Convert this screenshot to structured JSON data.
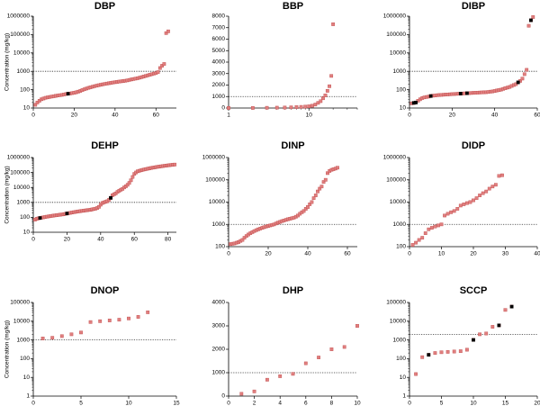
{
  "chart_data": [
    {
      "type": "scatter",
      "title": "DBP",
      "ylabel": "Concentration (mg/kg)",
      "xscale": "linear",
      "yscale": "log",
      "xlim": [
        0,
        70
      ],
      "ylim": [
        10,
        1000000
      ],
      "xticks": [
        "0",
        "20",
        "40",
        "60"
      ],
      "yticks": [
        "10",
        "100",
        "1000",
        "10000",
        "100000",
        "1000000"
      ],
      "threshold": 1000,
      "marker_color": "#e07f7f",
      "highlight_color": "#000000",
      "x": [
        1,
        2,
        3,
        4,
        5,
        6,
        7,
        8,
        9,
        10,
        11,
        12,
        13,
        14,
        15,
        16,
        17,
        18,
        19,
        20,
        21,
        22,
        23,
        24,
        25,
        26,
        27,
        28,
        29,
        30,
        31,
        32,
        33,
        34,
        35,
        36,
        37,
        38,
        39,
        40,
        41,
        42,
        43,
        44,
        45,
        46,
        47,
        48,
        49,
        50,
        51,
        52,
        53,
        54,
        55,
        56,
        57,
        58,
        59,
        60,
        61,
        62,
        63,
        64,
        65,
        66
      ],
      "y": [
        15,
        20,
        25,
        30,
        33,
        36,
        38,
        40,
        42,
        44,
        46,
        48,
        50,
        52,
        55,
        58,
        60,
        62,
        65,
        68,
        72,
        78,
        85,
        95,
        105,
        115,
        125,
        135,
        145,
        155,
        165,
        175,
        185,
        195,
        205,
        215,
        225,
        235,
        245,
        255,
        265,
        275,
        285,
        295,
        305,
        320,
        340,
        360,
        380,
        400,
        420,
        450,
        480,
        520,
        560,
        600,
        650,
        700,
        750,
        800,
        900,
        1500,
        2000,
        2500,
        120000,
        150000
      ],
      "highlight": [
        {
          "x": 17,
          "y": 60
        }
      ]
    },
    {
      "type": "scatter",
      "title": "BBP",
      "ylabel": "",
      "xscale": "log",
      "yscale": "linear",
      "xlim": [
        1,
        40
      ],
      "ylim": [
        0,
        8000
      ],
      "xticks": [
        "1",
        "10"
      ],
      "yticks": [
        "0",
        "1000",
        "2000",
        "3000",
        "4000",
        "5000",
        "6000",
        "7000",
        "8000"
      ],
      "threshold": 1000,
      "marker_color": "#e07f7f",
      "highlight_color": "#000000",
      "x": [
        1,
        2,
        3,
        4,
        5,
        6,
        7,
        8,
        9,
        10,
        11,
        12,
        13,
        14,
        15,
        16,
        17,
        18,
        19,
        20
      ],
      "y": [
        5,
        10,
        20,
        30,
        40,
        60,
        80,
        100,
        120,
        150,
        200,
        300,
        450,
        600,
        850,
        1100,
        1500,
        1900,
        2800,
        7300
      ],
      "highlight": []
    },
    {
      "type": "scatter",
      "title": "DIBP",
      "ylabel": "",
      "xscale": "linear",
      "yscale": "log",
      "xlim": [
        0,
        60
      ],
      "ylim": [
        10,
        1000000
      ],
      "xticks": [
        "0",
        "20",
        "40",
        "60"
      ],
      "yticks": [
        "10",
        "100",
        "1000",
        "10000",
        "100000",
        "1000000"
      ],
      "threshold": 1000,
      "marker_color": "#e07f7f",
      "highlight_color": "#000000",
      "x": [
        1,
        2,
        3,
        4,
        5,
        6,
        7,
        8,
        9,
        10,
        11,
        12,
        13,
        14,
        15,
        16,
        17,
        18,
        19,
        20,
        21,
        22,
        23,
        24,
        25,
        26,
        27,
        28,
        29,
        30,
        31,
        32,
        33,
        34,
        35,
        36,
        37,
        38,
        39,
        40,
        41,
        42,
        43,
        44,
        45,
        46,
        47,
        48,
        49,
        50,
        51,
        52,
        53,
        54,
        55,
        56,
        57,
        58
      ],
      "y": [
        18,
        19,
        20,
        25,
        30,
        35,
        38,
        40,
        42,
        45,
        47,
        48,
        50,
        51,
        52,
        53,
        54,
        55,
        56,
        57,
        58,
        59,
        60,
        61,
        62,
        63,
        64,
        65,
        66,
        67,
        68,
        69,
        70,
        71,
        72,
        73,
        75,
        78,
        80,
        85,
        90,
        95,
        100,
        110,
        120,
        130,
        140,
        160,
        180,
        200,
        250,
        300,
        400,
        700,
        1200,
        300000,
        600000,
        900000
      ],
      "highlight": [
        {
          "x": 2,
          "y": 19
        },
        {
          "x": 3,
          "y": 20
        },
        {
          "x": 10,
          "y": 45
        },
        {
          "x": 24,
          "y": 61
        },
        {
          "x": 27,
          "y": 64
        },
        {
          "x": 51,
          "y": 250
        },
        {
          "x": 57,
          "y": 600000
        }
      ]
    },
    {
      "type": "scatter",
      "title": "DEHP",
      "ylabel": "Concentration (mg/kg)",
      "xscale": "linear",
      "yscale": "log",
      "xlim": [
        0,
        85
      ],
      "ylim": [
        10,
        1000000
      ],
      "xticks": [
        "0",
        "20",
        "40",
        "60",
        "80"
      ],
      "yticks": [
        "10",
        "100",
        "1000",
        "10000",
        "100000",
        "1000000"
      ],
      "threshold": 1000,
      "marker_color": "#e07f7f",
      "highlight_color": "#000000",
      "x": [
        1,
        2,
        3,
        4,
        5,
        6,
        7,
        8,
        9,
        10,
        11,
        12,
        13,
        14,
        15,
        16,
        17,
        18,
        19,
        20,
        21,
        22,
        23,
        24,
        25,
        26,
        27,
        28,
        29,
        30,
        31,
        32,
        33,
        34,
        35,
        36,
        37,
        38,
        39,
        40,
        41,
        42,
        43,
        44,
        45,
        46,
        47,
        48,
        49,
        50,
        51,
        52,
        53,
        54,
        55,
        56,
        57,
        58,
        59,
        60,
        61,
        62,
        63,
        64,
        65,
        66,
        67,
        68,
        69,
        70,
        71,
        72,
        73,
        74,
        75,
        76,
        77,
        78,
        79,
        80,
        81,
        82,
        83,
        84
      ],
      "y": [
        70,
        80,
        85,
        90,
        95,
        100,
        105,
        110,
        115,
        120,
        125,
        130,
        135,
        140,
        145,
        150,
        155,
        160,
        170,
        180,
        190,
        200,
        210,
        220,
        230,
        240,
        250,
        260,
        270,
        280,
        290,
        300,
        310,
        320,
        340,
        360,
        380,
        420,
        500,
        700,
        900,
        1000,
        1100,
        1200,
        1500,
        2000,
        3000,
        3500,
        4000,
        5000,
        6000,
        7000,
        8000,
        10000,
        12000,
        15000,
        20000,
        30000,
        50000,
        80000,
        100000,
        120000,
        130000,
        140000,
        150000,
        160000,
        170000,
        180000,
        190000,
        200000,
        210000,
        220000,
        230000,
        240000,
        250000,
        260000,
        270000,
        280000,
        290000,
        300000,
        310000,
        320000,
        330000,
        340000
      ],
      "highlight": [
        {
          "x": 4,
          "y": 90
        },
        {
          "x": 20,
          "y": 180
        },
        {
          "x": 46,
          "y": 2000
        }
      ]
    },
    {
      "type": "scatter",
      "title": "DINP",
      "ylabel": "",
      "xscale": "linear",
      "yscale": "log",
      "xlim": [
        0,
        65
      ],
      "ylim": [
        100,
        1000000
      ],
      "xticks": [
        "0",
        "20",
        "40",
        "60"
      ],
      "yticks": [
        "100",
        "1000",
        "10000",
        "100000",
        "1000000"
      ],
      "threshold": 1000,
      "marker_color": "#e07f7f",
      "highlight_color": "#000000",
      "x": [
        1,
        2,
        3,
        4,
        5,
        6,
        7,
        8,
        9,
        10,
        11,
        12,
        13,
        14,
        15,
        16,
        17,
        18,
        19,
        20,
        21,
        22,
        23,
        24,
        25,
        26,
        27,
        28,
        29,
        30,
        31,
        32,
        33,
        34,
        35,
        36,
        37,
        38,
        39,
        40,
        41,
        42,
        43,
        44,
        45,
        46,
        47,
        48,
        49,
        50,
        51,
        52,
        53,
        54,
        55
      ],
      "y": [
        130,
        135,
        140,
        150,
        160,
        180,
        200,
        250,
        300,
        350,
        400,
        450,
        500,
        550,
        600,
        650,
        700,
        750,
        800,
        850,
        900,
        950,
        1000,
        1100,
        1200,
        1300,
        1400,
        1500,
        1600,
        1700,
        1800,
        1900,
        2000,
        2200,
        2500,
        3000,
        3500,
        4000,
        5000,
        6000,
        8000,
        10000,
        15000,
        20000,
        30000,
        40000,
        50000,
        80000,
        100000,
        200000,
        250000,
        280000,
        300000,
        320000,
        350000
      ],
      "highlight": []
    },
    {
      "type": "scatter",
      "title": "DIDP",
      "ylabel": "",
      "xscale": "linear",
      "yscale": "log",
      "xlim": [
        0,
        40
      ],
      "ylim": [
        100,
        1000000
      ],
      "xticks": [
        "0",
        "10",
        "20",
        "30",
        "40"
      ],
      "yticks": [
        "100",
        "1000",
        "10000",
        "100000",
        "1000000"
      ],
      "threshold": 1000,
      "marker_color": "#e07f7f",
      "highlight_color": "#000000",
      "x": [
        1,
        2,
        3,
        4,
        5,
        6,
        7,
        8,
        9,
        10,
        11,
        12,
        13,
        14,
        15,
        16,
        17,
        18,
        19,
        20,
        21,
        22,
        23,
        24,
        25,
        26,
        27,
        28,
        29
      ],
      "y": [
        120,
        150,
        200,
        250,
        400,
        600,
        700,
        800,
        900,
        1000,
        2500,
        3000,
        3500,
        4000,
        5000,
        7000,
        8000,
        9000,
        10000,
        12000,
        15000,
        20000,
        25000,
        30000,
        40000,
        50000,
        60000,
        150000,
        160000
      ],
      "highlight": []
    },
    {
      "type": "scatter",
      "title": "DNOP",
      "ylabel": "Concentration (mg/kg)",
      "xscale": "linear",
      "yscale": "log",
      "xlim": [
        0,
        15
      ],
      "ylim": [
        1,
        100000
      ],
      "xticks": [
        "0",
        "5",
        "10",
        "15"
      ],
      "yticks": [
        "1",
        "10",
        "100",
        "1000",
        "10000",
        "100000"
      ],
      "threshold": 1000,
      "marker_color": "#e07f7f",
      "highlight_color": "#000000",
      "x": [
        1,
        2,
        3,
        4,
        5,
        6,
        7,
        8,
        9,
        10,
        11,
        12
      ],
      "y": [
        1200,
        1300,
        1600,
        2000,
        2500,
        9000,
        10000,
        11000,
        12000,
        14000,
        17000,
        30000
      ],
      "highlight": []
    },
    {
      "type": "scatter",
      "title": "DHP",
      "ylabel": "",
      "xscale": "linear",
      "yscale": "linear",
      "xlim": [
        0,
        10
      ],
      "ylim": [
        0,
        4000
      ],
      "xticks": [
        "0",
        "2",
        "4",
        "6",
        "8",
        "10"
      ],
      "yticks": [
        "0",
        "1000",
        "2000",
        "3000",
        "4000"
      ],
      "threshold": 1000,
      "marker_color": "#e07f7f",
      "highlight_color": "#000000",
      "x": [
        1,
        2,
        3,
        4,
        5,
        6,
        7,
        8,
        9,
        10
      ],
      "y": [
        100,
        200,
        700,
        850,
        950,
        1400,
        1650,
        2000,
        2100,
        3000
      ],
      "highlight": []
    },
    {
      "type": "scatter",
      "title": "SCCP",
      "ylabel": "",
      "xscale": "linear",
      "yscale": "log",
      "xlim": [
        0,
        20
      ],
      "ylim": [
        1,
        100000
      ],
      "xticks": [
        "0",
        "5",
        "10",
        "15",
        "20"
      ],
      "yticks": [
        "1",
        "10",
        "100",
        "1000",
        "10000",
        "100000"
      ],
      "threshold": 2000,
      "marker_color": "#e07f7f",
      "highlight_color": "#000000",
      "x": [
        1,
        2,
        3,
        4,
        5,
        6,
        7,
        8,
        9,
        10,
        11,
        12,
        13,
        14,
        15,
        16
      ],
      "y": [
        15,
        120,
        160,
        200,
        220,
        230,
        240,
        250,
        300,
        1000,
        2000,
        2200,
        5000,
        6000,
        40000,
        60000
      ],
      "highlight": [
        {
          "x": 3,
          "y": 160
        },
        {
          "x": 10,
          "y": 1000
        },
        {
          "x": 14,
          "y": 6000
        },
        {
          "x": 16,
          "y": 60000
        }
      ]
    }
  ]
}
